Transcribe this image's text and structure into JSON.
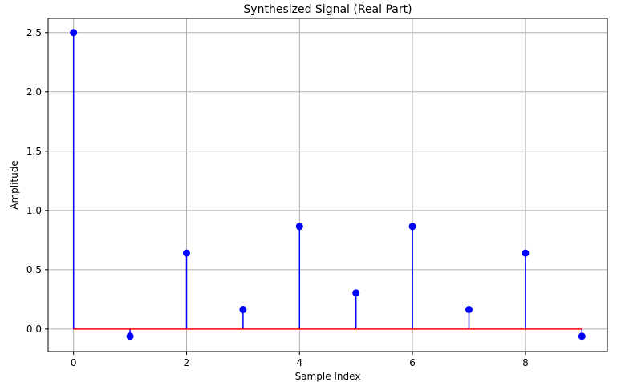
{
  "chart_data": {
    "type": "stem",
    "title": "Synthesized Signal (Real Part)",
    "xlabel": "Sample Index",
    "ylabel": "Amplitude",
    "xlim": [
      -0.45,
      9.45
    ],
    "ylim": [
      -0.19,
      2.62
    ],
    "x_ticks": [
      0,
      2,
      4,
      6,
      8
    ],
    "y_ticks": [
      0.0,
      0.5,
      1.0,
      1.5,
      2.0,
      2.5
    ],
    "y_tick_labels": [
      "0.0",
      "0.5",
      "1.0",
      "1.5",
      "2.0",
      "2.5"
    ],
    "grid": true,
    "baseline": 0,
    "series": [
      {
        "x": [
          0,
          1,
          2,
          3,
          4,
          5,
          6,
          7,
          8,
          9
        ],
        "values": [
          2.5,
          -0.06,
          0.64,
          0.165,
          0.865,
          0.305,
          0.865,
          0.165,
          0.64,
          -0.06
        ]
      }
    ],
    "colors": {
      "stem": "#0000ff",
      "marker": "#0000ff",
      "baseline": "#ff0000",
      "grid": "#b0b0b0"
    }
  }
}
